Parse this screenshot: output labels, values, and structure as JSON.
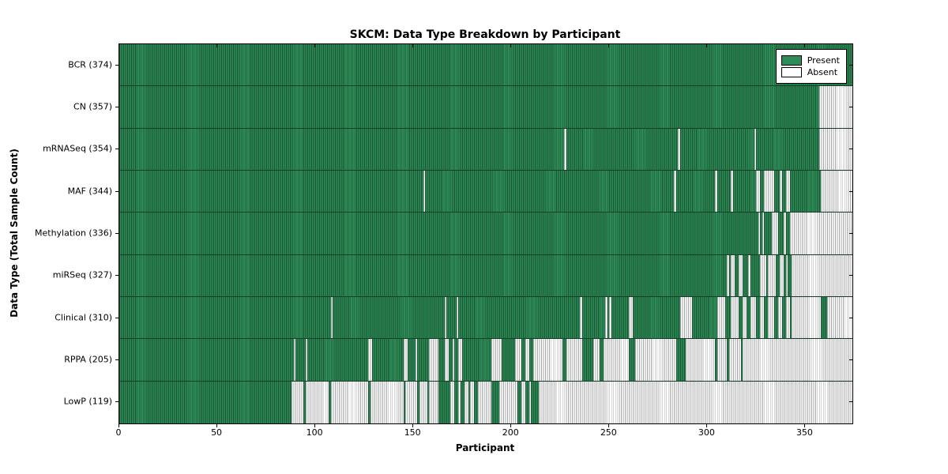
{
  "title": "SKCM: Data Type Breakdown by Participant",
  "chart_data": {
    "type": "heatmap",
    "title": "SKCM: Data Type Breakdown by Participant",
    "xlabel": "Participant",
    "ylabel": "Data Type (Total Sample Count)",
    "x_range": [
      0,
      374
    ],
    "x_ticks": [
      0,
      50,
      100,
      150,
      200,
      250,
      300,
      350
    ],
    "grid": false,
    "legend": {
      "position": "upper-right",
      "entries": [
        {
          "label": "Present",
          "color": "#2e8b57"
        },
        {
          "label": "Absent",
          "color": "#ffffff"
        }
      ]
    },
    "colors": {
      "present_fill": "#2e8b57",
      "present_edge": "#17532f",
      "absent_fill": "#ffffff",
      "absent_edge": "#a8a8a8"
    },
    "rows": [
      {
        "label": "BCR (374)",
        "name": "BCR",
        "total": 374,
        "absent_runs": []
      },
      {
        "label": "CN (357)",
        "name": "CN",
        "total": 357,
        "absent_runs": [
          [
            357,
            373
          ]
        ]
      },
      {
        "label": "mRNASeq (354)",
        "name": "mRNASeq",
        "total": 354,
        "absent_runs": [
          [
            227,
            227
          ],
          [
            285,
            285
          ],
          [
            324,
            324
          ],
          [
            357,
            373
          ]
        ]
      },
      {
        "label": "MAF (344)",
        "name": "MAF",
        "total": 344,
        "absent_runs": [
          [
            155,
            155
          ],
          [
            283,
            283
          ],
          [
            304,
            304
          ],
          [
            312,
            312
          ],
          [
            325,
            326
          ],
          [
            329,
            333
          ],
          [
            337,
            337
          ],
          [
            340,
            341
          ],
          [
            358,
            373
          ]
        ]
      },
      {
        "label": "Methylation (336)",
        "name": "Methylation",
        "total": 336,
        "absent_runs": [
          [
            326,
            326
          ],
          [
            328,
            328
          ],
          [
            333,
            335
          ],
          [
            339,
            339
          ],
          [
            342,
            373
          ]
        ]
      },
      {
        "label": "miRSeq (327)",
        "name": "miRSeq",
        "total": 327,
        "absent_runs": [
          [
            310,
            310
          ],
          [
            312,
            313
          ],
          [
            316,
            317
          ],
          [
            321,
            321
          ],
          [
            327,
            329
          ],
          [
            331,
            334
          ],
          [
            337,
            338
          ],
          [
            340,
            340
          ],
          [
            343,
            373
          ]
        ]
      },
      {
        "label": "Clinical (310)",
        "name": "Clinical",
        "total": 310,
        "absent_runs": [
          [
            108,
            108
          ],
          [
            166,
            166
          ],
          [
            172,
            172
          ],
          [
            235,
            235
          ],
          [
            248,
            248
          ],
          [
            250,
            250
          ],
          [
            260,
            261
          ],
          [
            286,
            291
          ],
          [
            305,
            308
          ],
          [
            312,
            315
          ],
          [
            318,
            319
          ],
          [
            322,
            324
          ],
          [
            327,
            328
          ],
          [
            331,
            333
          ],
          [
            336,
            337
          ],
          [
            340,
            341
          ],
          [
            343,
            357
          ],
          [
            361,
            373
          ]
        ]
      },
      {
        "label": "RPPA (205)",
        "name": "RPPA",
        "total": 205,
        "absent_runs": [
          [
            89,
            89
          ],
          [
            95,
            95
          ],
          [
            127,
            128
          ],
          [
            145,
            146
          ],
          [
            151,
            151
          ],
          [
            158,
            162
          ],
          [
            166,
            167
          ],
          [
            170,
            170
          ],
          [
            173,
            174
          ],
          [
            190,
            194
          ],
          [
            202,
            204
          ],
          [
            207,
            208
          ],
          [
            211,
            225
          ],
          [
            228,
            235
          ],
          [
            242,
            244
          ],
          [
            247,
            259
          ],
          [
            263,
            283
          ],
          [
            289,
            303
          ],
          [
            305,
            309
          ],
          [
            311,
            316
          ],
          [
            318,
            373
          ]
        ]
      },
      {
        "label": "LowP (119)",
        "name": "LowP",
        "total": 119,
        "absent_runs": [
          [
            88,
            93
          ],
          [
            95,
            106
          ],
          [
            108,
            126
          ],
          [
            128,
            144
          ],
          [
            146,
            151
          ],
          [
            153,
            156
          ],
          [
            158,
            162
          ],
          [
            169,
            170
          ],
          [
            173,
            173
          ],
          [
            176,
            177
          ],
          [
            179,
            180
          ],
          [
            183,
            189
          ],
          [
            194,
            202
          ],
          [
            205,
            206
          ],
          [
            209,
            209
          ],
          [
            214,
            373
          ]
        ]
      }
    ]
  }
}
